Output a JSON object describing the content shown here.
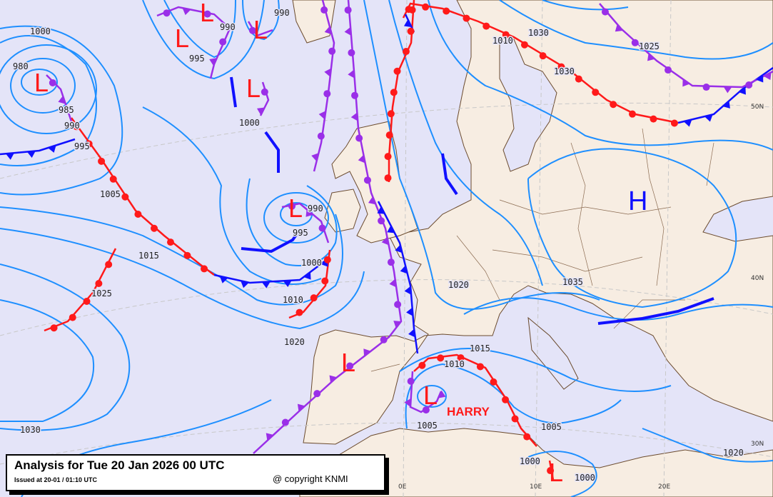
{
  "legend": {
    "title": "Analysis for Tue 20 Jan 2026 00 UTC",
    "issued": "Issued at 20-01 / 01:10 UTC",
    "copyright": "@ copyright KNMI"
  },
  "colors": {
    "sea": "#e4e4f8",
    "land": "#f7ede2",
    "isobar": "#1e8fff",
    "warm_front": "#ff1a1a",
    "cold_front": "#1010ff",
    "occluded_front": "#9a2fe8"
  },
  "centers": {
    "lows": [
      "L",
      "L",
      "L",
      "L",
      "L",
      "L",
      "L",
      "L",
      "L"
    ],
    "high": "H",
    "storm_name": "HARRY"
  },
  "isobar_labels": [
    "1000",
    "980",
    "985",
    "990",
    "995",
    "1005",
    "1015",
    "1025",
    "1030",
    "1020",
    "990",
    "995",
    "990",
    "1000",
    "990",
    "995",
    "1000",
    "1010",
    "1020",
    "1035",
    "1015",
    "1010",
    "1005",
    "1005",
    "1000",
    "1000",
    "1020",
    "1030",
    "1010",
    "1030",
    "1025"
  ],
  "graticule_labels": [
    "0E",
    "10E",
    "20E",
    "30N",
    "40N",
    "50N"
  ]
}
